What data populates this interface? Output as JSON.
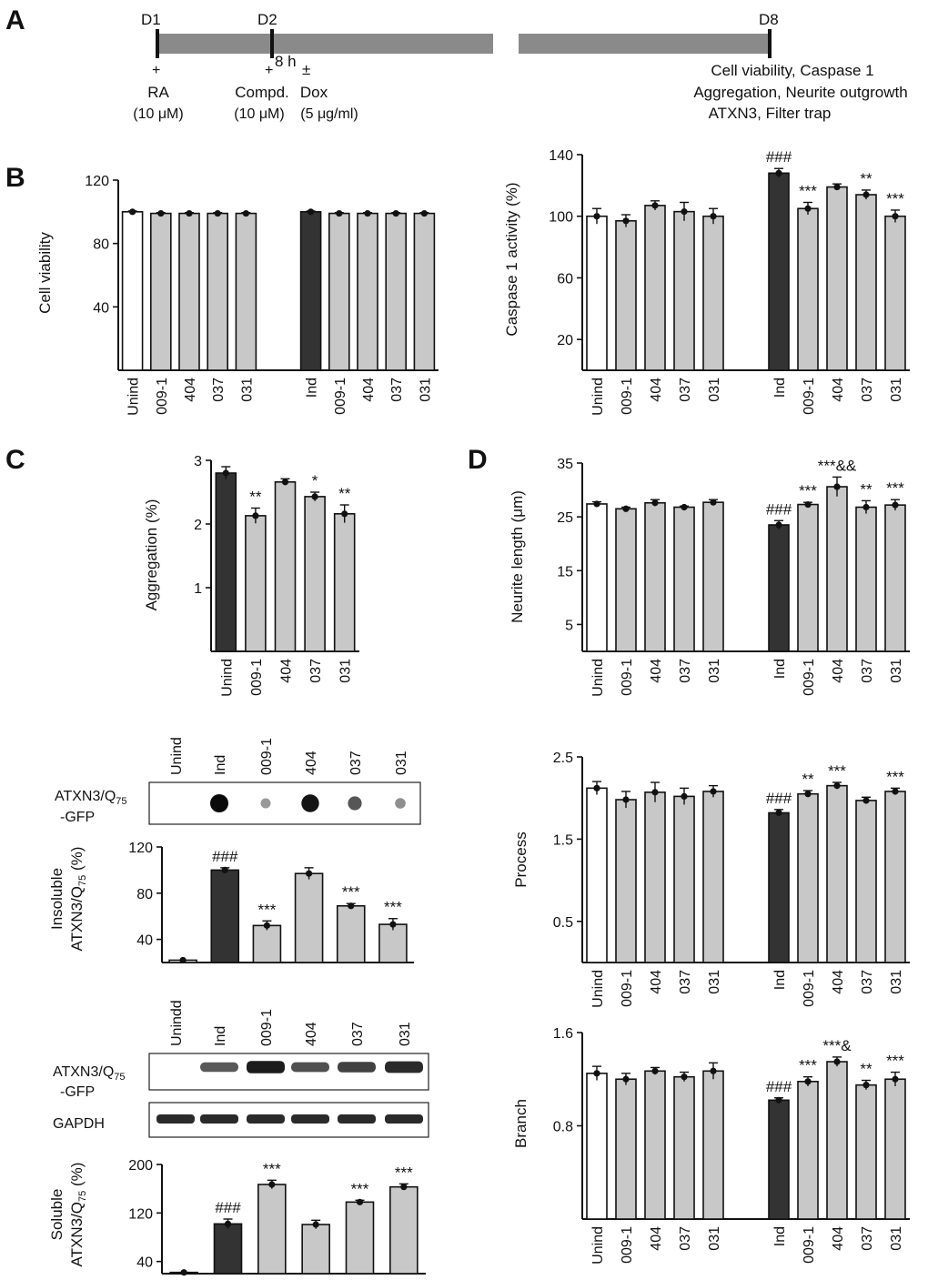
{
  "panel_letters": {
    "a": "A",
    "b": "B",
    "c": "C",
    "d": "D"
  },
  "timeline": {
    "days": [
      "D1",
      "D2",
      "D8"
    ],
    "plus": "+",
    "duration": "8 h",
    "plusminus": "±",
    "ra": "RA",
    "ra_conc": "(10 μM)",
    "compd": "Compd.",
    "compd_conc": "(10 μM)",
    "dox": "Dox",
    "dox_conc": "(5 μg/ml)",
    "readouts": [
      "Cell viability, Caspase 1",
      "Aggregation, Neurite outgrowth",
      "ATXN3, Filter trap"
    ]
  },
  "colors": {
    "white_bar": "#ffffff",
    "gray_bar": "#c8c8c8",
    "dark_bar": "#333333",
    "timeline_bar": "#8a8a8a"
  },
  "chart_data": [
    {
      "id": "viability",
      "type": "bar",
      "title": "",
      "xlabel": "",
      "ylabel": "Cell viability",
      "ylim": [
        0,
        120
      ],
      "yticks": [
        40,
        80,
        120
      ],
      "categories": [
        "Unind",
        "009-1",
        "404",
        "037",
        "031",
        "Ind",
        "009-1",
        "404",
        "037",
        "031"
      ],
      "values": [
        100,
        99,
        99,
        99,
        99,
        100,
        99,
        99,
        99,
        99
      ],
      "errors": [
        0.5,
        0.5,
        0.5,
        0.5,
        0.5,
        0.5,
        0.5,
        0.5,
        0.5,
        0.5
      ],
      "fills": [
        "white",
        "gray",
        "gray",
        "gray",
        "gray",
        "dark",
        "gray",
        "gray",
        "gray",
        "gray"
      ],
      "annotations": [
        "",
        "",
        "",
        "",
        "",
        "",
        "",
        "",
        "",
        ""
      ]
    },
    {
      "id": "caspase",
      "type": "bar",
      "title": "",
      "xlabel": "",
      "ylabel": "Caspase 1 activity (%)",
      "ylim": [
        0,
        140
      ],
      "yticks": [
        20,
        60,
        100,
        140
      ],
      "categories": [
        "Unind",
        "009-1",
        "404",
        "037",
        "031",
        "Ind",
        "009-1",
        "404",
        "037",
        "031"
      ],
      "values": [
        100,
        97,
        107,
        103,
        100,
        128,
        105,
        119,
        114,
        100
      ],
      "errors": [
        5,
        4,
        3,
        6,
        5,
        3,
        4,
        2,
        3,
        4
      ],
      "fills": [
        "white",
        "gray",
        "gray",
        "gray",
        "gray",
        "dark",
        "gray",
        "gray",
        "gray",
        "gray"
      ],
      "annotations": [
        "",
        "",
        "",
        "",
        "",
        "###",
        "***",
        "",
        "**",
        "***"
      ]
    },
    {
      "id": "aggregation",
      "type": "bar",
      "title": "",
      "xlabel": "",
      "ylabel": "Aggregation (%)",
      "ylim": [
        0,
        3
      ],
      "yticks": [
        1,
        2,
        3
      ],
      "categories": [
        "Unind",
        "009-1",
        "404",
        "037",
        "031"
      ],
      "values": [
        2.8,
        2.13,
        2.66,
        2.43,
        2.16
      ],
      "errors": [
        0.1,
        0.12,
        0.05,
        0.07,
        0.14
      ],
      "fills": [
        "dark",
        "gray",
        "gray",
        "gray",
        "gray"
      ],
      "annotations": [
        "",
        "**",
        "",
        "*",
        "**"
      ]
    },
    {
      "id": "neurite",
      "type": "bar",
      "title": "",
      "xlabel": "",
      "ylabel": "Neurite length (μm)",
      "ylim": [
        0,
        35
      ],
      "yticks": [
        5,
        15,
        25,
        35
      ],
      "categories": [
        "Unind",
        "009-1",
        "404",
        "037",
        "031",
        "Ind",
        "009-1",
        "404",
        "037",
        "031"
      ],
      "values": [
        27.4,
        26.5,
        27.6,
        26.8,
        27.7,
        23.5,
        27.3,
        30.6,
        26.8,
        27.2
      ],
      "errors": [
        0.4,
        0.3,
        0.6,
        0.2,
        0.5,
        0.8,
        0.4,
        1.8,
        1.2,
        1.0
      ],
      "fills": [
        "white",
        "gray",
        "gray",
        "gray",
        "gray",
        "dark",
        "gray",
        "gray",
        "gray",
        "gray"
      ],
      "annotations": [
        "",
        "",
        "",
        "",
        "",
        "###",
        "***",
        "***&&",
        "**",
        "***"
      ]
    },
    {
      "id": "insoluble",
      "type": "bar",
      "title": "",
      "xlabel": "",
      "ylabel": "Insoluble ATXN3/Q75 (%)",
      "ylim": [
        20,
        120
      ],
      "yticks": [
        40,
        80,
        120
      ],
      "categories": [
        "Unind",
        "Ind",
        "009-1",
        "404",
        "037",
        "031"
      ],
      "values": [
        22,
        100,
        52,
        97,
        69,
        53
      ],
      "errors": [
        0,
        2,
        4,
        5,
        2,
        5
      ],
      "fills": [
        "white",
        "dark",
        "gray",
        "gray",
        "gray",
        "gray"
      ],
      "annotations": [
        "",
        "###",
        "***",
        "",
        "***",
        "***"
      ]
    },
    {
      "id": "process",
      "type": "bar",
      "title": "",
      "xlabel": "",
      "ylabel": "Process",
      "ylim": [
        0,
        2.5
      ],
      "yticks": [
        0.5,
        1.5,
        2.5
      ],
      "categories": [
        "Unind",
        "009-1",
        "404",
        "037",
        "031",
        "Ind",
        "009-1",
        "404",
        "037",
        "031"
      ],
      "values": [
        2.12,
        1.98,
        2.07,
        2.02,
        2.08,
        1.82,
        2.05,
        2.15,
        1.97,
        2.08
      ],
      "errors": [
        0.08,
        0.1,
        0.12,
        0.1,
        0.07,
        0.04,
        0.04,
        0.04,
        0.04,
        0.04
      ],
      "fills": [
        "white",
        "gray",
        "gray",
        "gray",
        "gray",
        "dark",
        "gray",
        "gray",
        "gray",
        "gray"
      ],
      "annotations": [
        "",
        "",
        "",
        "",
        "",
        "###",
        "**",
        "***",
        "",
        "***"
      ]
    },
    {
      "id": "soluble",
      "type": "bar",
      "title": "",
      "xlabel": "",
      "ylabel": "Soluble ATXN3/Q75 (%)",
      "ylim": [
        20,
        200
      ],
      "yticks": [
        40,
        120,
        200
      ],
      "categories": [
        "Unind",
        "Ind",
        "009-1",
        "404",
        "037",
        "031"
      ],
      "values": [
        22,
        102,
        167,
        101,
        138,
        163
      ],
      "errors": [
        0,
        8,
        7,
        7,
        3,
        5
      ],
      "fills": [
        "white",
        "dark",
        "gray",
        "gray",
        "gray",
        "gray"
      ],
      "annotations": [
        "",
        "###",
        "***",
        "",
        "***",
        "***"
      ]
    },
    {
      "id": "branch",
      "type": "bar",
      "title": "",
      "xlabel": "",
      "ylabel": "Branch",
      "ylim": [
        0,
        1.6
      ],
      "yticks": [
        0.8,
        1.6
      ],
      "categories": [
        "Unind",
        "009-1",
        "404",
        "037",
        "031",
        "Ind",
        "009-1",
        "404",
        "037",
        "031"
      ],
      "values": [
        1.25,
        1.2,
        1.27,
        1.22,
        1.27,
        1.02,
        1.18,
        1.35,
        1.15,
        1.2
      ],
      "errors": [
        0.06,
        0.05,
        0.03,
        0.04,
        0.07,
        0.02,
        0.04,
        0.04,
        0.04,
        0.06
      ],
      "fills": [
        "white",
        "gray",
        "gray",
        "gray",
        "gray",
        "dark",
        "gray",
        "gray",
        "gray",
        "gray"
      ],
      "annotations": [
        "",
        "",
        "",
        "",
        "",
        "###",
        "***",
        "***&",
        "**",
        "***"
      ]
    }
  ],
  "filter_trap": {
    "lanes": [
      "Unind",
      "Ind",
      "009-1",
      "404",
      "037",
      "031"
    ],
    "row_label_line1": "ATXN3/Q",
    "subscript": "75",
    "row_label_line2": "-GFP",
    "dot_intensity": [
      0,
      1.0,
      0.25,
      0.95,
      0.6,
      0.3
    ]
  },
  "western": {
    "lanes": [
      "Unindd",
      "Ind",
      "009-1",
      "404",
      "037",
      "031"
    ],
    "row1_line1": "ATXN3/Q",
    "subscript": "75",
    "row1_line2": "-GFP",
    "row2": "GAPDH",
    "band_intensity": [
      0,
      0.55,
      0.95,
      0.6,
      0.7,
      0.85
    ]
  },
  "ylabel_parts": {
    "insoluble_line1": "Insoluble",
    "soluble_line1": "Soluble",
    "line2": "ATXN3/Q",
    "subscript": "75",
    "suffix": " (%)"
  }
}
